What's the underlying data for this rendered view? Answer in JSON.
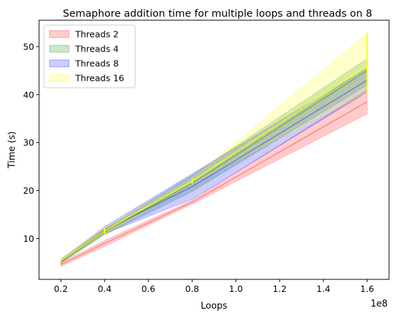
{
  "chart_data": {
    "type": "area",
    "title": "Semaphore addition time for multiple loops and threads on 8",
    "xlabel": "Loops",
    "ylabel": "Time (s)",
    "x_offset_label": "1e8",
    "xlim": [
      10000000,
      170000000
    ],
    "ylim": [
      1.5,
      55.5
    ],
    "x_ticks": [
      20000000,
      40000000,
      60000000,
      80000000,
      100000000,
      120000000,
      140000000,
      160000000
    ],
    "x_tick_labels": [
      "0.2",
      "0.4",
      "0.6",
      "0.8",
      "1.0",
      "1.2",
      "1.4",
      "1.6"
    ],
    "y_ticks": [
      10,
      20,
      30,
      40,
      50
    ],
    "y_tick_labels": [
      "10",
      "20",
      "30",
      "40",
      "50"
    ],
    "grid": false,
    "legend_position": "top-left",
    "x": [
      20000000,
      40000000,
      80000000,
      160000000
    ],
    "series": [
      {
        "name": "Threads 2",
        "color": "#ff0000",
        "mean": [
          4.6,
          9.0,
          17.6,
          38.5
        ],
        "lower": [
          4.2,
          8.4,
          17.2,
          36.0
        ],
        "upper": [
          5.0,
          9.6,
          18.0,
          41.0
        ]
      },
      {
        "name": "Threads 4",
        "color": "#008000",
        "mean": [
          5.2,
          11.4,
          21.5,
          45.0
        ],
        "lower": [
          4.9,
          10.8,
          19.8,
          42.0
        ],
        "upper": [
          5.5,
          12.0,
          23.2,
          47.5
        ]
      },
      {
        "name": "Threads 8",
        "color": "#0000ff",
        "mean": [
          5.3,
          11.8,
          20.8,
          43.0
        ],
        "lower": [
          5.0,
          11.0,
          18.2,
          40.5
        ],
        "upper": [
          5.7,
          12.5,
          23.5,
          45.5
        ]
      },
      {
        "name": "Threads 16",
        "color": "#ffff00",
        "mean": [
          5.4,
          11.6,
          22.0,
          46.0
        ],
        "lower": [
          5.1,
          11.0,
          21.4,
          40.5
        ],
        "upper": [
          5.8,
          12.3,
          22.6,
          52.8
        ]
      }
    ],
    "fill_alpha": 0.2
  }
}
